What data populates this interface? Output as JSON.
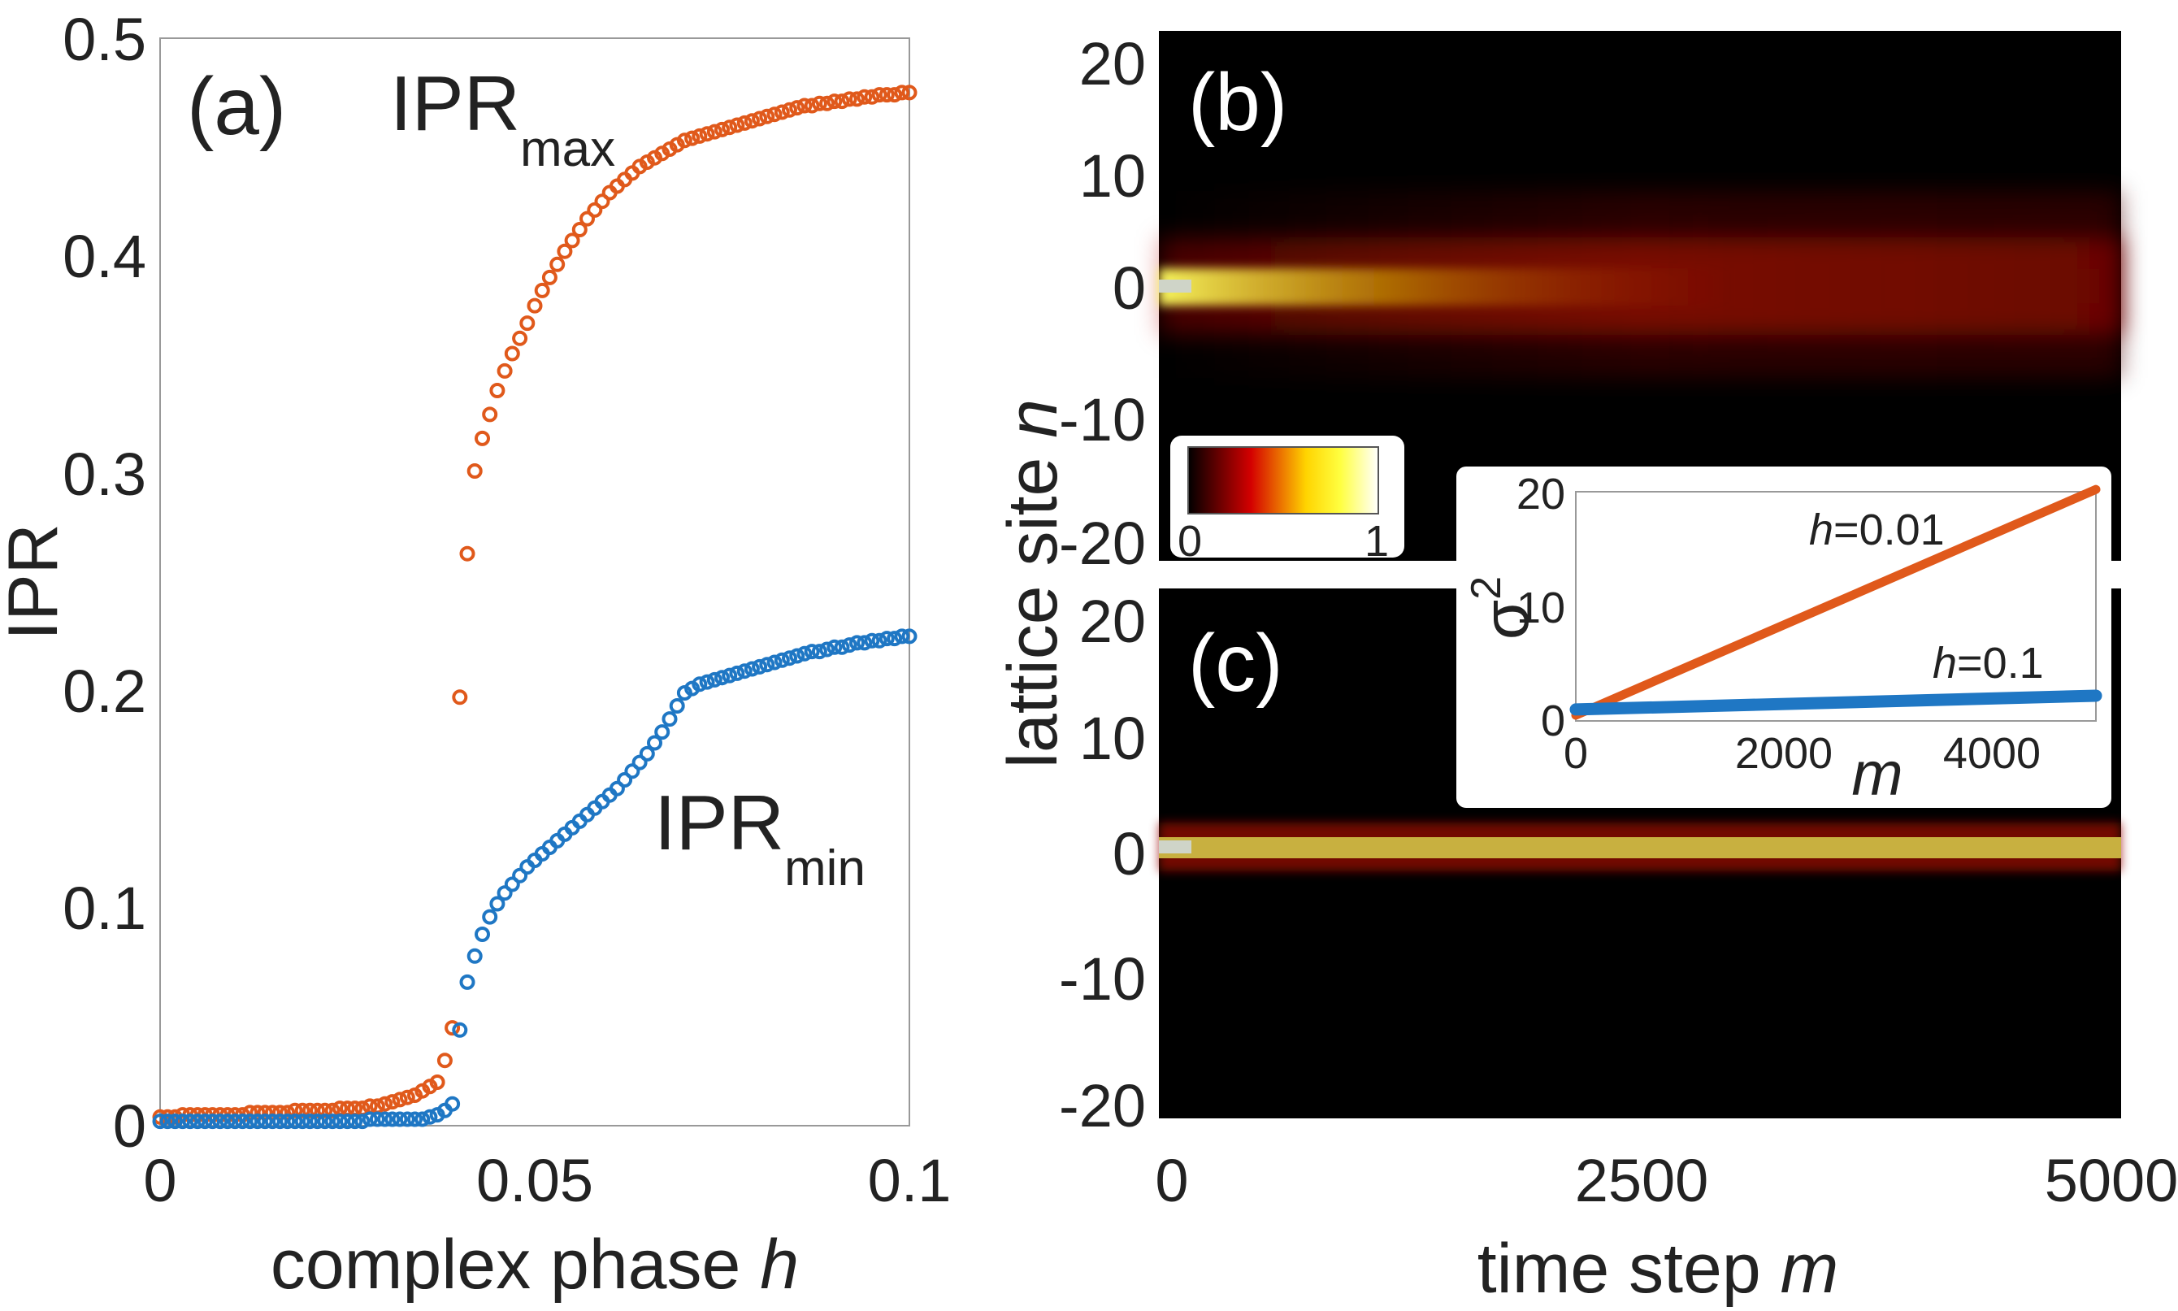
{
  "chart_data": [
    {
      "panel": "(a)",
      "type": "scatter",
      "xlabel": "complex phase",
      "xlabel_var": "h",
      "ylabel": "IPR",
      "xlim": [
        0,
        0.1
      ],
      "ylim": [
        0,
        0.5
      ],
      "xticks": [
        "0",
        "0.05",
        "0.1"
      ],
      "yticks": [
        "0",
        "0.1",
        "0.2",
        "0.3",
        "0.4",
        "0.5"
      ],
      "annotations": {
        "max_main": "IPR",
        "max_sub": "max",
        "min_main": "IPR",
        "min_sub": "min"
      },
      "series": [
        {
          "name": "IPR_max",
          "color": "#e0591b",
          "x": [
            0.0,
            0.001,
            0.002,
            0.003,
            0.004,
            0.005,
            0.006,
            0.007,
            0.008,
            0.009,
            0.01,
            0.011,
            0.012,
            0.013,
            0.014,
            0.015,
            0.016,
            0.017,
            0.018,
            0.019,
            0.02,
            0.021,
            0.022,
            0.023,
            0.024,
            0.025,
            0.026,
            0.027,
            0.028,
            0.029,
            0.03,
            0.031,
            0.032,
            0.033,
            0.034,
            0.035,
            0.036,
            0.037,
            0.038,
            0.039,
            0.04,
            0.041,
            0.042,
            0.043,
            0.044,
            0.045,
            0.046,
            0.047,
            0.048,
            0.049,
            0.05,
            0.051,
            0.052,
            0.053,
            0.054,
            0.055,
            0.056,
            0.057,
            0.058,
            0.059,
            0.06,
            0.061,
            0.062,
            0.063,
            0.064,
            0.065,
            0.066,
            0.067,
            0.068,
            0.069,
            0.07,
            0.071,
            0.072,
            0.073,
            0.074,
            0.075,
            0.076,
            0.077,
            0.078,
            0.079,
            0.08,
            0.081,
            0.082,
            0.083,
            0.084,
            0.085,
            0.086,
            0.087,
            0.088,
            0.089,
            0.09,
            0.091,
            0.092,
            0.093,
            0.094,
            0.095,
            0.096,
            0.097,
            0.098,
            0.099,
            0.1
          ],
          "y": [
            0.004,
            0.004,
            0.004,
            0.005,
            0.005,
            0.005,
            0.005,
            0.005,
            0.005,
            0.005,
            0.005,
            0.005,
            0.006,
            0.006,
            0.006,
            0.006,
            0.006,
            0.006,
            0.007,
            0.007,
            0.007,
            0.007,
            0.007,
            0.007,
            0.008,
            0.008,
            0.008,
            0.008,
            0.009,
            0.009,
            0.01,
            0.011,
            0.012,
            0.013,
            0.014,
            0.016,
            0.018,
            0.02,
            0.03,
            0.045,
            0.197,
            0.263,
            0.301,
            0.316,
            0.327,
            0.338,
            0.347,
            0.355,
            0.362,
            0.369,
            0.377,
            0.384,
            0.39,
            0.396,
            0.402,
            0.407,
            0.412,
            0.417,
            0.421,
            0.425,
            0.429,
            0.432,
            0.435,
            0.438,
            0.441,
            0.443,
            0.445,
            0.447,
            0.449,
            0.451,
            0.453,
            0.454,
            0.455,
            0.456,
            0.457,
            0.458,
            0.459,
            0.46,
            0.461,
            0.462,
            0.463,
            0.464,
            0.465,
            0.466,
            0.467,
            0.468,
            0.469,
            0.469,
            0.47,
            0.47,
            0.471,
            0.471,
            0.472,
            0.472,
            0.473,
            0.473,
            0.474,
            0.474,
            0.474,
            0.475,
            0.475
          ]
        },
        {
          "name": "IPR_min",
          "color": "#1f77c4",
          "x": [
            0.0,
            0.001,
            0.002,
            0.003,
            0.004,
            0.005,
            0.006,
            0.007,
            0.008,
            0.009,
            0.01,
            0.011,
            0.012,
            0.013,
            0.014,
            0.015,
            0.016,
            0.017,
            0.018,
            0.019,
            0.02,
            0.021,
            0.022,
            0.023,
            0.024,
            0.025,
            0.026,
            0.027,
            0.028,
            0.029,
            0.03,
            0.031,
            0.032,
            0.033,
            0.034,
            0.035,
            0.036,
            0.037,
            0.038,
            0.039,
            0.04,
            0.041,
            0.042,
            0.043,
            0.044,
            0.045,
            0.046,
            0.047,
            0.048,
            0.049,
            0.05,
            0.051,
            0.052,
            0.053,
            0.054,
            0.055,
            0.056,
            0.057,
            0.058,
            0.059,
            0.06,
            0.061,
            0.062,
            0.063,
            0.064,
            0.065,
            0.066,
            0.067,
            0.068,
            0.069,
            0.07,
            0.071,
            0.072,
            0.073,
            0.074,
            0.075,
            0.076,
            0.077,
            0.078,
            0.079,
            0.08,
            0.081,
            0.082,
            0.083,
            0.084,
            0.085,
            0.086,
            0.087,
            0.088,
            0.089,
            0.09,
            0.091,
            0.092,
            0.093,
            0.094,
            0.095,
            0.096,
            0.097,
            0.098,
            0.099,
            0.1
          ],
          "y": [
            0.002,
            0.002,
            0.002,
            0.002,
            0.002,
            0.002,
            0.002,
            0.002,
            0.002,
            0.002,
            0.002,
            0.002,
            0.002,
            0.002,
            0.002,
            0.002,
            0.002,
            0.002,
            0.002,
            0.002,
            0.002,
            0.002,
            0.002,
            0.002,
            0.002,
            0.002,
            0.002,
            0.002,
            0.003,
            0.003,
            0.003,
            0.003,
            0.003,
            0.003,
            0.003,
            0.003,
            0.004,
            0.005,
            0.007,
            0.01,
            0.044,
            0.066,
            0.078,
            0.088,
            0.096,
            0.102,
            0.107,
            0.111,
            0.115,
            0.119,
            0.122,
            0.125,
            0.128,
            0.131,
            0.134,
            0.137,
            0.14,
            0.143,
            0.146,
            0.149,
            0.152,
            0.155,
            0.159,
            0.163,
            0.167,
            0.171,
            0.176,
            0.181,
            0.187,
            0.193,
            0.199,
            0.201,
            0.203,
            0.204,
            0.205,
            0.206,
            0.207,
            0.208,
            0.209,
            0.21,
            0.211,
            0.212,
            0.213,
            0.214,
            0.215,
            0.216,
            0.217,
            0.218,
            0.218,
            0.219,
            0.22,
            0.22,
            0.221,
            0.222,
            0.222,
            0.223,
            0.223,
            0.224,
            0.224,
            0.225,
            0.225
          ]
        }
      ]
    },
    {
      "panel": "(b)",
      "type": "heatmap",
      "ylabel": "lattice site",
      "ylabel_var": "n",
      "ylim": [
        -20,
        20
      ],
      "yticks": [
        "20",
        "10",
        "0",
        "-10",
        "-20"
      ],
      "colorbar": {
        "min_label": "0",
        "max_label": "1",
        "range": [
          0,
          1
        ]
      },
      "spread": "diffusive"
    },
    {
      "panel": "(c)",
      "type": "heatmap",
      "xlabel": "time step",
      "xlabel_var": "m",
      "ylabel": "lattice site",
      "ylabel_var": "n",
      "xlim": [
        0,
        5000
      ],
      "ylim": [
        -20,
        20
      ],
      "xticks": [
        "0",
        "2500",
        "5000"
      ],
      "yticks": [
        "20",
        "10",
        "0",
        "-10",
        "-20"
      ],
      "spread": "localized"
    },
    {
      "panel": "inset",
      "type": "line",
      "xlabel": "m",
      "ylabel": "σ",
      "ylabel_sup": "2",
      "xlim": [
        0,
        5000
      ],
      "ylim": [
        0,
        20
      ],
      "xticks": [
        "0",
        "2000",
        "4000"
      ],
      "yticks": [
        "0",
        "10",
        "20"
      ],
      "series": [
        {
          "name": "h=0.01",
          "label_var": "h",
          "label_val": "=0.01",
          "color": "#e0591b",
          "x": [
            0,
            5000
          ],
          "y": [
            0.5,
            20.2
          ]
        },
        {
          "name": "h=0.1",
          "label_var": "h",
          "label_val": "=0.1",
          "color": "#1f77c4",
          "x": [
            0,
            5000
          ],
          "y": [
            1.0,
            2.2
          ]
        }
      ]
    }
  ]
}
